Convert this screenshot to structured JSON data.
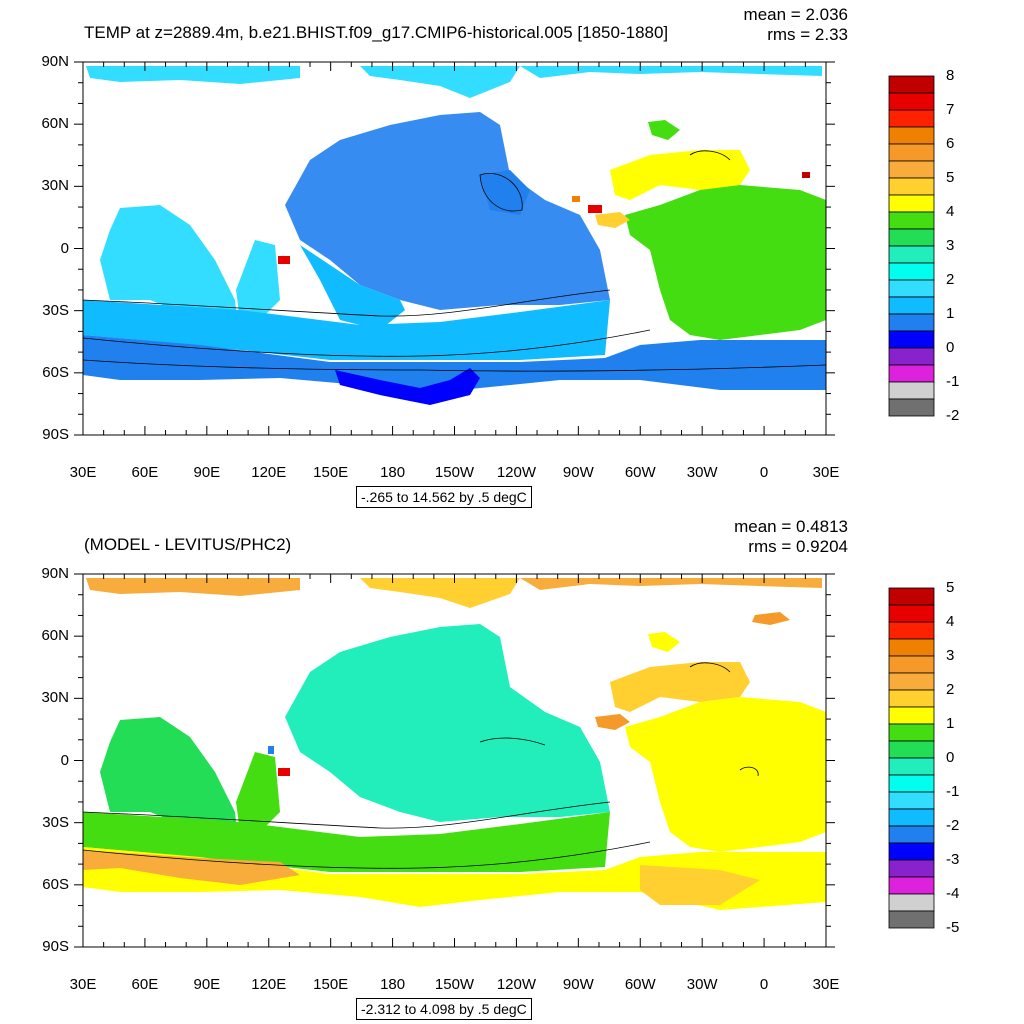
{
  "colors": {
    "land": "#ffffff",
    "frame": "#000000",
    "contour": "#000000"
  },
  "x_tick_labels": [
    "30E",
    "60E",
    "90E",
    "120E",
    "150E",
    "180",
    "150W",
    "120W",
    "90W",
    "60W",
    "30W",
    "0",
    "30E"
  ],
  "y_tick_labels": [
    "90N",
    "60N",
    "30N",
    "0",
    "30S",
    "60S",
    "90S"
  ],
  "panels": [
    {
      "id": "top",
      "title": "TEMP at z=2889.4m, b.e21.BHIST.f09_g17.CMIP6-historical.005 [1850-1880]",
      "mean_text": "mean = 2.036",
      "rms_text": "rms = 2.33",
      "range_text": "-.265 to 14.562 by .5 degC",
      "colorbar": {
        "labels": [
          "8",
          "7",
          "6",
          "5",
          "4",
          "3",
          "2",
          "1",
          "0",
          "-1",
          "-2"
        ],
        "colors": [
          "#c00000",
          "#e60000",
          "#ff2200",
          "#f08000",
          "#f59a28",
          "#f7ac3c",
          "#ffd030",
          "#ffff00",
          "#44dd11",
          "#22dd55",
          "#22eebb",
          "#00ffee",
          "#33ddff",
          "#11bbff",
          "#2080ee",
          "#0000ff",
          "#8822cc",
          "#dd22dd",
          "#d0d0d0",
          "#707070"
        ]
      }
    },
    {
      "id": "bottom",
      "title": "(MODEL - LEVITUS/PHC2)",
      "mean_text": "mean = 0.4813",
      "rms_text": "rms = 0.9204",
      "range_text": "-2.312 to 4.098 by .5 degC",
      "colorbar": {
        "labels": [
          "5",
          "4",
          "3",
          "2",
          "1",
          "0",
          "-1",
          "-2",
          "-3",
          "-4",
          "-5"
        ],
        "colors": [
          "#c00000",
          "#e60000",
          "#ff2200",
          "#f08000",
          "#f59a28",
          "#f7ac3c",
          "#ffd030",
          "#ffff00",
          "#44dd11",
          "#22dd55",
          "#22eebb",
          "#00ffee",
          "#33ddff",
          "#11bbff",
          "#2080ee",
          "#0000ff",
          "#8822cc",
          "#dd22dd",
          "#d0d0d0",
          "#707070"
        ]
      }
    }
  ]
}
